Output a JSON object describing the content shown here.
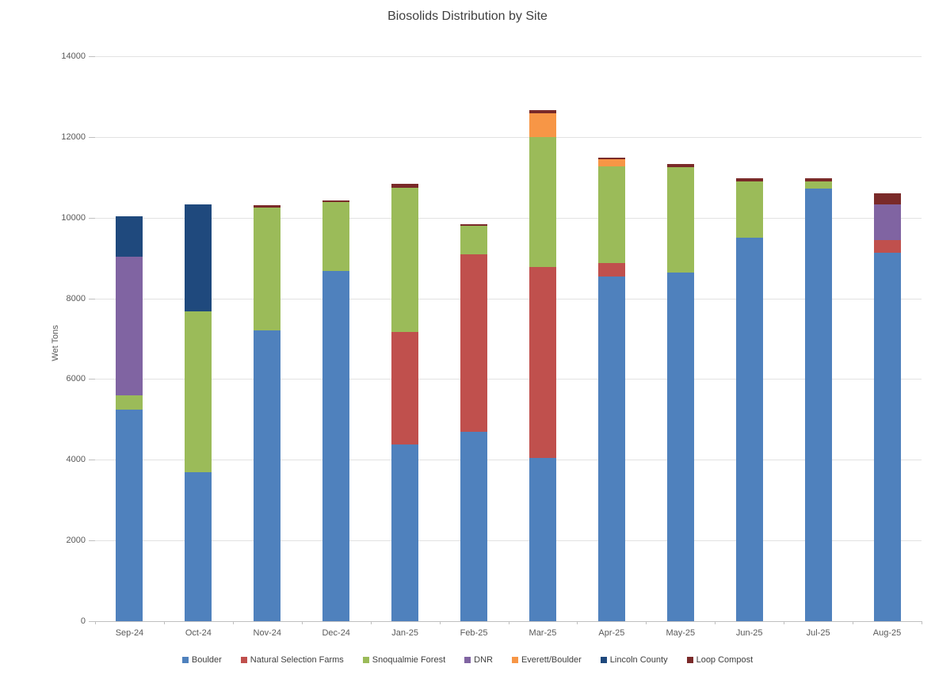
{
  "chart_data": {
    "type": "bar",
    "stacked": true,
    "title": "Biosolids Distribution by Site",
    "xlabel": "",
    "ylabel": "Wet Tons",
    "ylim": [
      0,
      14000
    ],
    "ytick_interval": 2000,
    "grid": true,
    "legend_position": "bottom",
    "categories": [
      "Sep-24",
      "Oct-24",
      "Nov-24",
      "Dec-24",
      "Jan-25",
      "Feb-25",
      "Mar-25",
      "Apr-25",
      "May-25",
      "Jun-25",
      "Jul-25",
      "Aug-25"
    ],
    "series": [
      {
        "name": "Boulder",
        "color": "#4F81BD",
        "values": [
          5240,
          3690,
          7200,
          8670,
          4380,
          4690,
          4050,
          8550,
          8630,
          9510,
          10720,
          9130
        ]
      },
      {
        "name": "Natural Selection Farms",
        "color": "#C0504D",
        "values": [
          0,
          0,
          0,
          0,
          2780,
          4410,
          4720,
          320,
          0,
          0,
          0,
          310
        ]
      },
      {
        "name": "Snoqualmie Forest",
        "color": "#9BBB59",
        "values": [
          350,
          3980,
          3050,
          1720,
          3580,
          690,
          3230,
          2410,
          2620,
          1390,
          170,
          0
        ]
      },
      {
        "name": "DNR",
        "color": "#8064A2",
        "values": [
          3440,
          0,
          0,
          0,
          0,
          0,
          0,
          0,
          0,
          0,
          0,
          890
        ]
      },
      {
        "name": "Everett/Boulder",
        "color": "#F79646",
        "values": [
          0,
          0,
          0,
          0,
          0,
          0,
          580,
          160,
          0,
          0,
          0,
          0
        ]
      },
      {
        "name": "Lincoln County",
        "color": "#1F497D",
        "values": [
          1000,
          2660,
          0,
          0,
          0,
          0,
          0,
          0,
          0,
          0,
          0,
          0
        ]
      },
      {
        "name": "Loop Compost",
        "color": "#7A2A29",
        "values": [
          0,
          0,
          60,
          40,
          90,
          50,
          80,
          50,
          80,
          80,
          80,
          280
        ]
      }
    ],
    "totals": [
      10030,
      10330,
      10310,
      10430,
      10830,
      9840,
      12660,
      11490,
      11330,
      10980,
      10970,
      10610
    ]
  }
}
